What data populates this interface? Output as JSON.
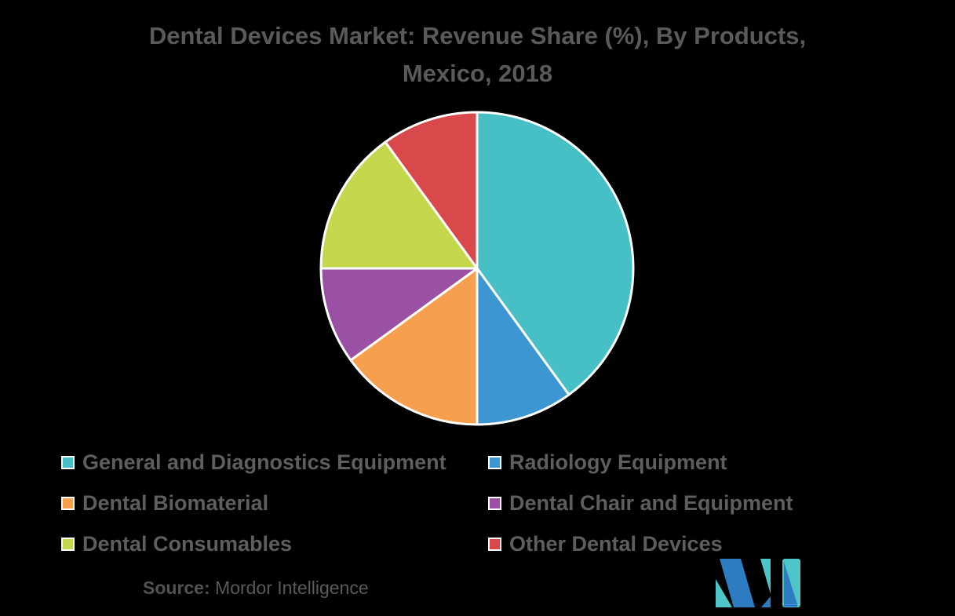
{
  "title": {
    "line1": "Dental Devices Market: Revenue Share (%), By Products,",
    "line2": "Mexico, 2018"
  },
  "chart_data": {
    "type": "pie",
    "title": "Dental Devices Market: Revenue Share (%), By Products, Mexico, 2018",
    "start_angle_deg": 0,
    "direction": "clockwise",
    "values_unit": "%",
    "legend_position": "bottom",
    "slices": [
      {
        "label": "General and Diagnostics Equipment",
        "value": 40,
        "color": "#47c0c5"
      },
      {
        "label": "Radiology Equipment",
        "value": 10,
        "color": "#3b96d2"
      },
      {
        "label": "Dental Biomaterial",
        "value": 15,
        "color": "#f6a04f"
      },
      {
        "label": "Dental Chair and Equipment",
        "value": 10,
        "color": "#9b51a3"
      },
      {
        "label": "Dental Consumables",
        "value": 15,
        "color": "#c5d84d"
      },
      {
        "label": "Other Dental Devices",
        "value": 10,
        "color": "#d9494b"
      }
    ]
  },
  "source": {
    "label": "Source:",
    "text": "Mordor Intelligence"
  },
  "logo": {
    "name": "Mordor Intelligence logo",
    "colors": {
      "blue": "#2d7cc1",
      "teal": "#4ec6c8",
      "accent": "#2b6fd6"
    }
  }
}
